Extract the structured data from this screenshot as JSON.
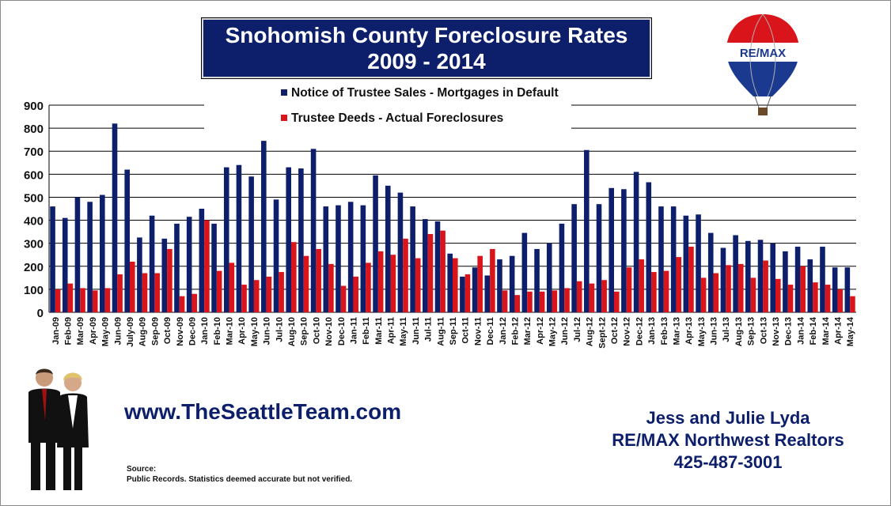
{
  "header": {
    "title_line1": "Snohomish County Foreclosure Rates",
    "title_line2": "2009 - 2014"
  },
  "legend": {
    "series1": "Notice of Trustee Sales - Mortgages in Default",
    "series2": "Trustee Deeds - Actual Foreclosures"
  },
  "logo": {
    "text": "RE/MAX"
  },
  "website": "www.TheSeattleTeam.com",
  "contact": {
    "name": "Jess and Julie Lyda",
    "company": "RE/MAX Northwest Realtors",
    "phone": "425-487-3001"
  },
  "source": {
    "label": "Source:",
    "text": "Public Records.   Statistics deemed accurate but not verified."
  },
  "colors": {
    "series1": "#0d1f6b",
    "series2": "#d9141b",
    "title_bg": "#0d1f6b",
    "accent_text": "#0d1f6b"
  },
  "chart_data": {
    "type": "bar",
    "title": "Snohomish County Foreclosure Rates 2009 - 2014",
    "xlabel": "",
    "ylabel": "",
    "ylim": [
      0,
      900
    ],
    "yticks": [
      0,
      100,
      200,
      300,
      400,
      500,
      600,
      700,
      800,
      900
    ],
    "grid": true,
    "legend_position": "top",
    "categories": [
      "Jan-09",
      "Feb-09",
      "Mar-09",
      "Apr-09",
      "May-09",
      "Jun-09",
      "July-09",
      "Aug-09",
      "Sep-09",
      "Oct-09",
      "Nov-09",
      "Dec-09",
      "Jan-10",
      "Feb-10",
      "Mar-10",
      "Apr-10",
      "May-10",
      "Jun-10",
      "Jul-10",
      "Aug-10",
      "Sep-10",
      "Oct-10",
      "Nov-10",
      "Dec-10",
      "Jan-11",
      "Feb-11",
      "Mar-11",
      "Apr-11",
      "May-11",
      "Jun-11",
      "Jul-11",
      "Aug-11",
      "Sep-11",
      "Oct-11",
      "Nov-11",
      "Dec-11",
      "Jan-12",
      "Feb-12",
      "Mar-12",
      "Apr-12",
      "May-12",
      "Jun-12",
      "Jul-12",
      "Aug-12",
      "Sept-12",
      "Oct-12",
      "Nov-12",
      "Dec-12",
      "Jan-13",
      "Feb-13",
      "Mar-13",
      "Apr-13",
      "May-13",
      "Jun-13",
      "Jul-13",
      "Aug-13",
      "Sep-13",
      "Oct-13",
      "Nov-13",
      "Dec-13",
      "Jan-14",
      "Feb-14",
      "Mar-14",
      "Apr-14",
      "May-14"
    ],
    "series": [
      {
        "name": "Notice of Trustee Sales - Mortgages in Default",
        "values": [
          460,
          410,
          500,
          480,
          510,
          820,
          620,
          325,
          420,
          320,
          385,
          415,
          450,
          385,
          630,
          640,
          590,
          745,
          490,
          630,
          625,
          710,
          460,
          465,
          480,
          465,
          595,
          550,
          520,
          460,
          405,
          395,
          255,
          155,
          195,
          160,
          230,
          245,
          345,
          275,
          300,
          385,
          470,
          705,
          470,
          540,
          535,
          610,
          565,
          460,
          460,
          420,
          425,
          345,
          280,
          335,
          310,
          315,
          300,
          265,
          285,
          230,
          285,
          195,
          195
        ]
      },
      {
        "name": "Trustee Deeds - Actual Foreclosures",
        "values": [
          100,
          125,
          105,
          95,
          105,
          165,
          220,
          170,
          170,
          275,
          70,
          80,
          400,
          180,
          215,
          120,
          140,
          155,
          175,
          305,
          245,
          275,
          210,
          115,
          155,
          215,
          265,
          250,
          320,
          235,
          340,
          355,
          235,
          165,
          245,
          275,
          95,
          75,
          90,
          90,
          95,
          105,
          135,
          125,
          140,
          90,
          195,
          230,
          175,
          180,
          240,
          285,
          150,
          170,
          205,
          210,
          150,
          225,
          145,
          120,
          200,
          130,
          120,
          100,
          70
        ]
      }
    ]
  }
}
